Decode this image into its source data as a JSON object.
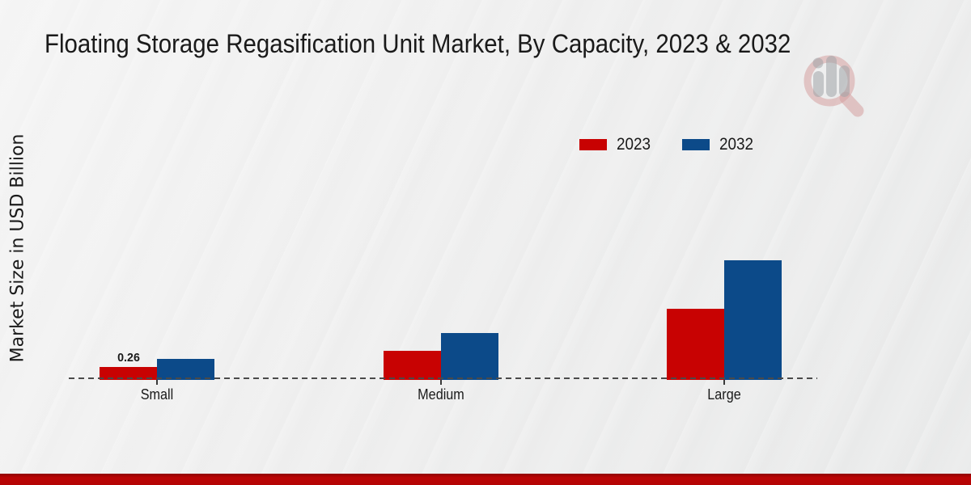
{
  "title": "Floating Storage Regasification Unit Market, By Capacity, 2023 & 2032",
  "y_axis_label": "Market Size in USD Billion",
  "legend": [
    {
      "label": "2023",
      "color": "#c80202"
    },
    {
      "label": "2032",
      "color": "#0c4a89"
    }
  ],
  "colors": {
    "series_2023": "#c80202",
    "series_2032": "#0c4a89",
    "baseline": "#4a4a4a",
    "footer_band": "#b40404",
    "background": "#eeeeee",
    "text": "#1a1a1a"
  },
  "watermark": {
    "icon": "magnifier-bar-chart-logo"
  },
  "footer": {
    "band_color": "#b40404"
  },
  "chart_data": {
    "type": "bar",
    "title": "Floating Storage Regasification Unit Market, By Capacity, 2023 & 2032",
    "categories": [
      "Small",
      "Medium",
      "Large"
    ],
    "series": [
      {
        "name": "2023",
        "color": "#c80202",
        "values": [
          0.26,
          0.6,
          1.46
        ]
      },
      {
        "name": "2032",
        "color": "#0c4a89",
        "values": [
          0.43,
          0.97,
          2.46
        ]
      }
    ],
    "bar_value_labels": [
      {
        "series": "2023",
        "category": "Small",
        "text": "0.26"
      }
    ],
    "xlabel": "",
    "ylabel": "Market Size in USD Billion",
    "ylim": [
      0,
      2.6
    ],
    "grid": false,
    "y_axis_ticks_visible": false,
    "baseline_style": "dashed",
    "legend_position": "upper-center-right"
  }
}
